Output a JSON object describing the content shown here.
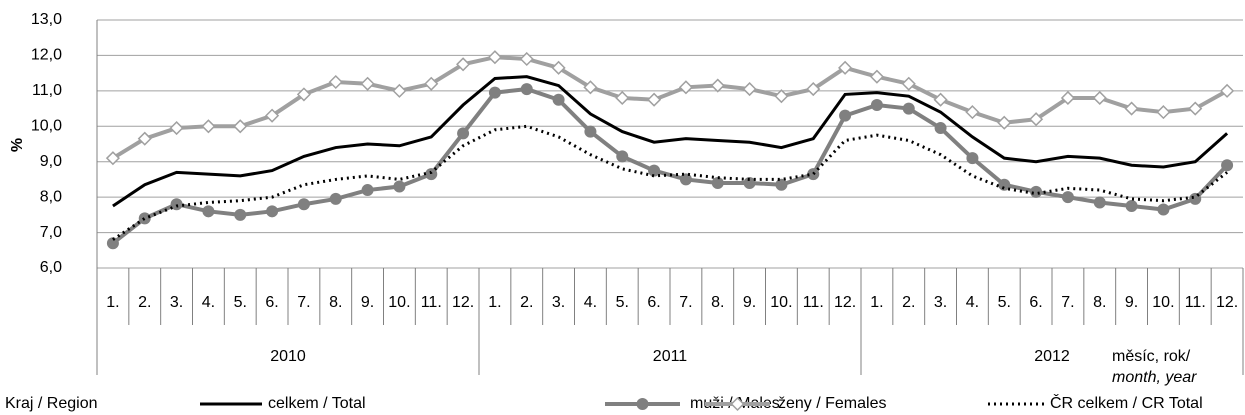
{
  "chart_data": {
    "type": "line",
    "ylabel": "%",
    "xlabel_lines": [
      "měsíc, rok/",
      "month, year"
    ],
    "legend_title": "Kraj / Region",
    "categories": [
      "1.",
      "2.",
      "3.",
      "4.",
      "5.",
      "6.",
      "7.",
      "8.",
      "9.",
      "10.",
      "11.",
      "12.",
      "1.",
      "2.",
      "3.",
      "4.",
      "5.",
      "6.",
      "7.",
      "8.",
      "9.",
      "10.",
      "11.",
      "12.",
      "1.",
      "2.",
      "3.",
      "4.",
      "5.",
      "6.",
      "7.",
      "8.",
      "9.",
      "10.",
      "11.",
      "12."
    ],
    "groups": [
      "2010",
      "2011",
      "2012"
    ],
    "ylim": [
      6,
      13
    ],
    "yticks": [
      {
        "value": 6,
        "label": "6,0"
      },
      {
        "value": 7,
        "label": "7,0"
      },
      {
        "value": 8,
        "label": "8,0"
      },
      {
        "value": 9,
        "label": "9,0"
      },
      {
        "value": 10,
        "label": "10,0"
      },
      {
        "value": 11,
        "label": "11,0"
      },
      {
        "value": 12,
        "label": "12,0"
      },
      {
        "value": 13,
        "label": "13,0"
      }
    ],
    "grid": true,
    "series": [
      {
        "name": "celkem / Total",
        "color": "#000000",
        "style": "solid",
        "marker": "none",
        "values": [
          7.75,
          8.35,
          8.7,
          8.65,
          8.6,
          8.75,
          9.15,
          9.4,
          9.5,
          9.45,
          9.7,
          10.6,
          11.35,
          11.4,
          11.15,
          10.35,
          9.85,
          9.55,
          9.65,
          9.6,
          9.55,
          9.4,
          9.65,
          10.9,
          10.95,
          10.85,
          10.4,
          9.7,
          9.1,
          9.0,
          9.15,
          9.1,
          8.9,
          8.85,
          9.0,
          9.8
        ]
      },
      {
        "name": "muži / Males",
        "color": "#808080",
        "style": "solid",
        "marker": "circle",
        "values": [
          6.7,
          7.4,
          7.8,
          7.6,
          7.5,
          7.6,
          7.8,
          7.95,
          8.2,
          8.3,
          8.65,
          9.8,
          10.95,
          11.05,
          10.75,
          9.85,
          9.15,
          8.75,
          8.5,
          8.4,
          8.4,
          8.35,
          8.65,
          10.3,
          10.6,
          10.5,
          9.95,
          9.1,
          8.35,
          8.15,
          8.0,
          7.85,
          7.75,
          7.65,
          7.95,
          8.9
        ]
      },
      {
        "name": "ženy / Females",
        "color": "#a0a0a0",
        "style": "solid",
        "marker": "diamond",
        "values": [
          9.1,
          9.65,
          9.95,
          10.0,
          10.0,
          10.3,
          10.9,
          11.25,
          11.2,
          11.0,
          11.2,
          11.75,
          11.95,
          11.9,
          11.65,
          11.1,
          10.8,
          10.75,
          11.1,
          11.15,
          11.05,
          10.85,
          11.05,
          11.65,
          11.4,
          11.2,
          10.75,
          10.4,
          10.1,
          10.2,
          10.8,
          10.8,
          10.5,
          10.4,
          10.5,
          11.0
        ]
      },
      {
        "name": "ČR celkem / CR Total",
        "color": "#000000",
        "style": "dotted",
        "marker": "none",
        "values": [
          6.8,
          7.4,
          7.75,
          7.85,
          7.9,
          8.0,
          8.35,
          8.5,
          8.6,
          8.5,
          8.7,
          9.45,
          9.9,
          10.0,
          9.7,
          9.2,
          8.8,
          8.6,
          8.65,
          8.55,
          8.5,
          8.5,
          8.65,
          9.6,
          9.75,
          9.6,
          9.2,
          8.6,
          8.25,
          8.1,
          8.25,
          8.2,
          7.95,
          7.9,
          8.0,
          8.7
        ]
      }
    ]
  }
}
